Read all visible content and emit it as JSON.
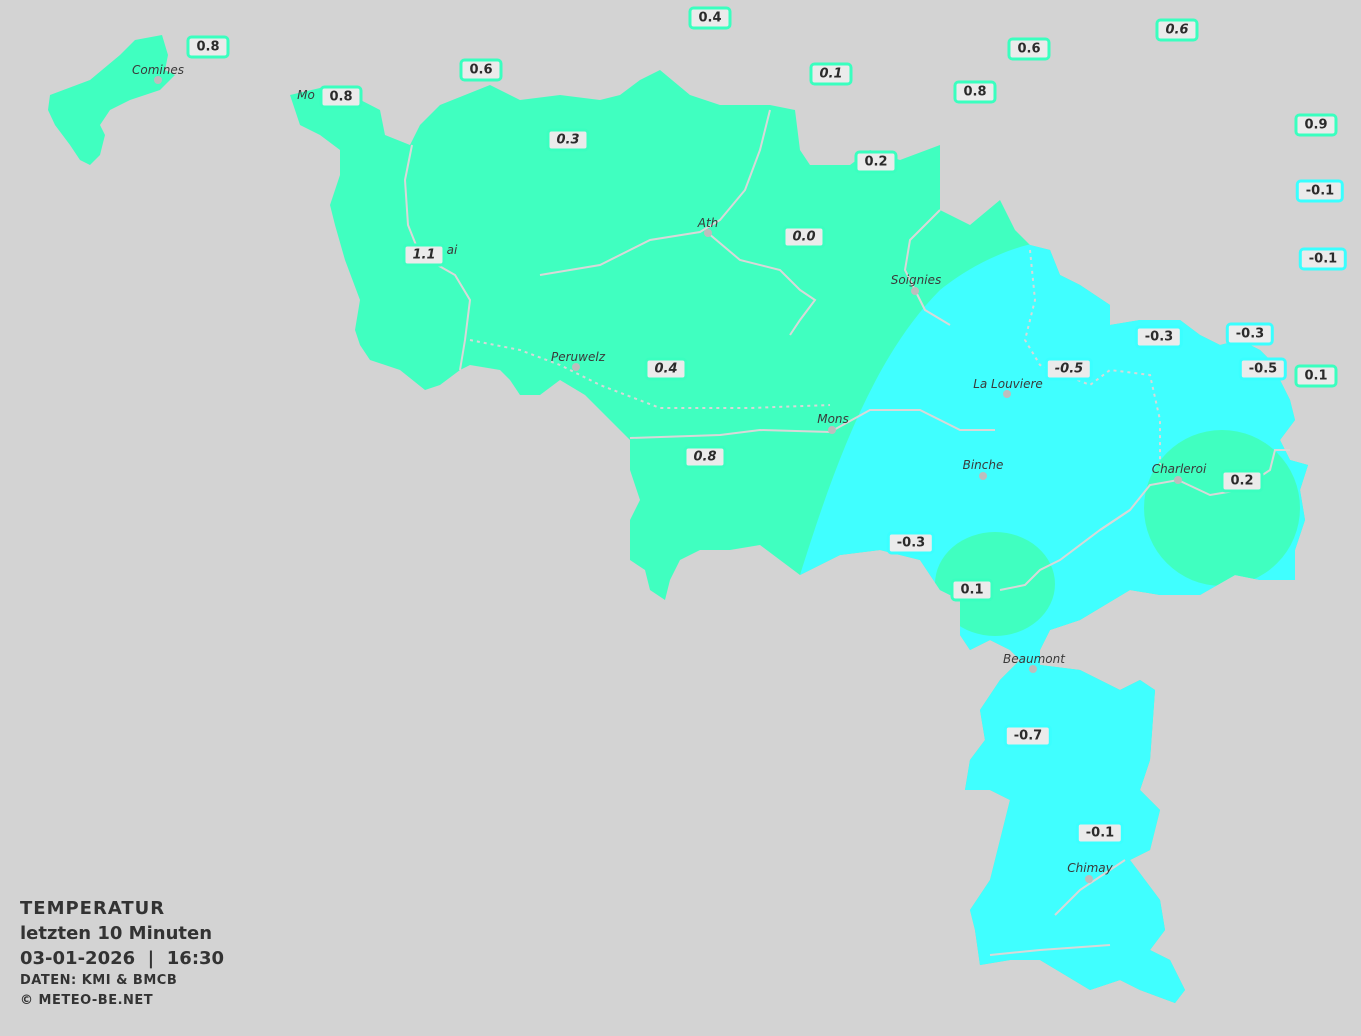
{
  "legend": {
    "title": "TEMPERATUR",
    "period": "letzten 10 Minuten",
    "datetime": "03-01-2026  |  16:30",
    "source": "DATEN: KMI & BMCB",
    "copyright": "© METEO-BE.NET"
  },
  "colors": {
    "background": "#d3d3d3",
    "warm_zone": "#40ffc0",
    "cold_zone": "#40ffff",
    "label_bg": "#ebebeb",
    "river": "#d8d8d8"
  },
  "cities": [
    "Comines",
    "Mo",
    "ai",
    "Ath",
    "Soignies",
    "Peruwelz",
    "La Louviere",
    "Mons",
    "Binche",
    "Charleroi",
    "Beaumont",
    "Chimay"
  ],
  "stations": [
    {
      "value": "0.4",
      "italic": false
    },
    {
      "value": "0.8",
      "italic": false
    },
    {
      "value": "0.6",
      "italic": false
    },
    {
      "value": "0.6",
      "italic": true
    },
    {
      "value": "0.6",
      "italic": false
    },
    {
      "value": "0.1",
      "italic": true
    },
    {
      "value": "0.8",
      "italic": false
    },
    {
      "value": "0.8",
      "italic": false
    },
    {
      "value": "0.9",
      "italic": false
    },
    {
      "value": "0.3",
      "italic": true
    },
    {
      "value": "0.2",
      "italic": false
    },
    {
      "value": "-0.1",
      "italic": false
    },
    {
      "value": "0.0",
      "italic": true
    },
    {
      "value": "1.1",
      "italic": true
    },
    {
      "value": "-0.1",
      "italic": false
    },
    {
      "value": "-0.3",
      "italic": false
    },
    {
      "value": "-0.3",
      "italic": false
    },
    {
      "value": "-0.5",
      "italic": true
    },
    {
      "value": "-0.5",
      "italic": false
    },
    {
      "value": "0.1",
      "italic": false
    },
    {
      "value": "0.4",
      "italic": true
    },
    {
      "value": "0.8",
      "italic": true
    },
    {
      "value": "0.2",
      "italic": false
    },
    {
      "value": "-0.3",
      "italic": false
    },
    {
      "value": "0.1",
      "italic": false
    },
    {
      "value": "-0.7",
      "italic": false
    },
    {
      "value": "-0.1",
      "italic": false
    }
  ]
}
